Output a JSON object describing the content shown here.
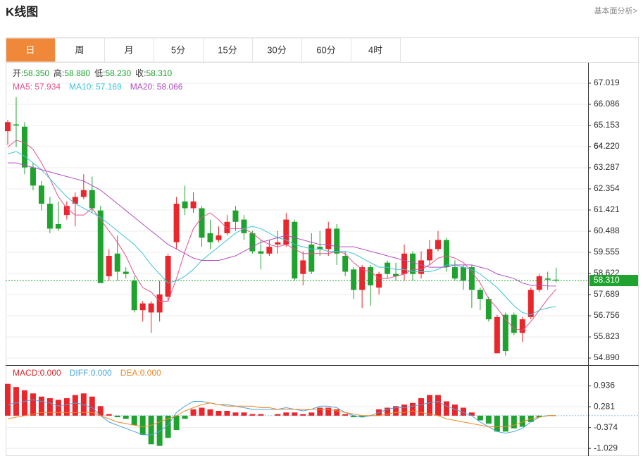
{
  "header": {
    "title": "K线图",
    "link": "基本面分析>"
  },
  "tabs": [
    "日",
    "周",
    "月",
    "5分",
    "15分",
    "30分",
    "60分",
    "4时"
  ],
  "active_tab": 0,
  "active_color": "#f0883a",
  "chart_data": [
    {
      "type": "candlestick",
      "up_color": "#e8262b",
      "down_color": "#1fa22e",
      "info": [
        {
          "label": "开:",
          "value": "58.350"
        },
        {
          "label": "高:",
          "value": "58.880"
        },
        {
          "label": "低:",
          "value": "58.230"
        },
        {
          "label": "收:",
          "value": "58.310"
        }
      ],
      "open": [
        64.9,
        65.2,
        65.1,
        63.3,
        62.5,
        61.7,
        60.8,
        61.2,
        61.7,
        62.0,
        62.3,
        61.4,
        58.5,
        59.5,
        58.7,
        58.3,
        57.0,
        56.9,
        56.9,
        57.6,
        60.0,
        61.8,
        61.5,
        61.5,
        60.4,
        60.1,
        60.4,
        61.4,
        61.0,
        60.4,
        59.6,
        59.5,
        59.9,
        59.9,
        60.9,
        58.6,
        59.9,
        59.8,
        59.7,
        60.6,
        59.4,
        58.8,
        57.9,
        58.9,
        58.0,
        59.1,
        58.6,
        58.6,
        59.5,
        58.6,
        59.2,
        59.7,
        60.1,
        58.9,
        58.9,
        58.9,
        57.9,
        57.5,
        55.1,
        56.8,
        56.8,
        56.0,
        56.7,
        57.9,
        58.4,
        58.35
      ],
      "high": [
        65.4,
        66.4,
        65.3,
        63.5,
        62.7,
        62.0,
        61.8,
        61.8,
        62.2,
        63.0,
        62.9,
        61.6,
        59.7,
        60.3,
        58.9,
        58.5,
        57.4,
        57.4,
        58.3,
        59.5,
        62.0,
        62.5,
        62.2,
        61.6,
        61.0,
        60.7,
        61.2,
        61.6,
        61.2,
        60.5,
        60.1,
        60.1,
        60.5,
        61.3,
        61.0,
        59.6,
        60.4,
        60.5,
        60.9,
        60.8,
        59.6,
        58.9,
        59.0,
        59.0,
        58.7,
        59.2,
        59.1,
        59.9,
        59.6,
        59.6,
        60.1,
        60.5,
        60.2,
        59.2,
        59.0,
        59.0,
        58.0,
        57.6,
        56.8,
        56.9,
        56.9,
        56.7,
        58.0,
        58.6,
        58.7,
        58.88
      ],
      "low": [
        64.3,
        64.2,
        63.0,
        62.3,
        61.4,
        60.4,
        60.5,
        61.0,
        60.7,
        61.9,
        61.3,
        58.2,
        58.3,
        58.3,
        58.4,
        56.9,
        56.5,
        56.0,
        56.5,
        57.4,
        59.7,
        61.2,
        61.3,
        59.8,
        59.7,
        60.0,
        60.3,
        60.5,
        60.1,
        59.5,
        58.8,
        59.4,
        59.5,
        59.8,
        58.3,
        58.1,
        58.6,
        59.4,
        59.4,
        59.0,
        58.5,
        57.5,
        57.1,
        57.2,
        57.7,
        58.4,
        58.3,
        58.3,
        58.3,
        58.4,
        59.0,
        59.6,
        58.7,
        58.3,
        57.9,
        57.1,
        57.0,
        56.5,
        55.1,
        55.0,
        55.9,
        55.6,
        56.6,
        57.8,
        57.9,
        58.23
      ],
      "close": [
        65.3,
        65.15,
        63.3,
        62.5,
        61.7,
        60.6,
        60.6,
        61.6,
        62.0,
        62.3,
        61.5,
        58.2,
        59.4,
        58.7,
        58.6,
        57.0,
        57.3,
        57.3,
        57.7,
        59.4,
        61.7,
        61.5,
        61.8,
        60.2,
        60.0,
        60.3,
        60.9,
        60.9,
        60.4,
        59.6,
        59.5,
        59.8,
        60.0,
        61.0,
        58.4,
        59.2,
        58.7,
        59.7,
        60.6,
        59.5,
        58.7,
        57.9,
        58.9,
        58.1,
        58.6,
        58.6,
        58.5,
        59.5,
        58.6,
        59.2,
        59.7,
        60.1,
        58.9,
        58.4,
        58.3,
        57.9,
        57.5,
        56.6,
        56.7,
        55.2,
        56.0,
        56.6,
        57.9,
        58.5,
        58.35,
        58.31
      ],
      "series": [
        {
          "name": "MA5: 57.934",
          "color": "#e8508e",
          "values": [
            64.2,
            64.5,
            64.4,
            64.1,
            63.5,
            62.8,
            62.0,
            61.5,
            61.2,
            61.2,
            61.5,
            61.0,
            60.5,
            60.0,
            59.4,
            58.6,
            58.0,
            57.8,
            57.4,
            57.4,
            58.4,
            59.6,
            60.6,
            61.1,
            61.3,
            61.0,
            60.6,
            60.6,
            60.6,
            60.4,
            60.1,
            59.9,
            59.8,
            59.9,
            59.7,
            59.5,
            59.5,
            59.5,
            59.5,
            59.6,
            59.5,
            59.1,
            58.8,
            58.7,
            58.4,
            58.4,
            58.5,
            58.6,
            58.8,
            58.8,
            59.0,
            59.3,
            59.4,
            59.3,
            59.1,
            58.7,
            58.2,
            57.5,
            57.1,
            56.6,
            56.2,
            56.1,
            56.5,
            57.0,
            57.5,
            57.934
          ]
        },
        {
          "name": "MA10: 57.169",
          "color": "#3cc4d9",
          "values": [
            63.9,
            64.0,
            63.8,
            63.5,
            63.2,
            62.8,
            62.4,
            62.0,
            61.7,
            61.5,
            61.3,
            61.1,
            60.8,
            60.5,
            60.2,
            59.9,
            59.5,
            59.0,
            58.6,
            58.2,
            58.3,
            58.5,
            58.8,
            59.2,
            59.5,
            59.8,
            60.1,
            60.4,
            60.6,
            60.7,
            60.6,
            60.4,
            60.2,
            60.1,
            59.9,
            59.8,
            59.7,
            59.7,
            59.6,
            59.6,
            59.6,
            59.5,
            59.3,
            59.1,
            58.9,
            58.9,
            58.8,
            58.8,
            58.7,
            58.7,
            58.7,
            58.8,
            59.0,
            59.0,
            58.9,
            58.8,
            58.6,
            58.3,
            58.0,
            57.6,
            57.2,
            56.9,
            56.8,
            57.0,
            57.1,
            57.169
          ]
        },
        {
          "name": "MA20: 58.066",
          "color": "#b24cc4",
          "values": [
            63.5,
            63.5,
            63.4,
            63.3,
            63.2,
            63.1,
            63.0,
            62.9,
            62.8,
            62.7,
            62.5,
            62.3,
            62.0,
            61.7,
            61.4,
            61.1,
            60.8,
            60.5,
            60.2,
            59.9,
            59.7,
            59.5,
            59.3,
            59.2,
            59.2,
            59.2,
            59.3,
            59.4,
            59.6,
            59.8,
            60.0,
            60.1,
            60.2,
            60.3,
            60.2,
            60.1,
            60.0,
            59.9,
            59.9,
            59.8,
            59.8,
            59.8,
            59.7,
            59.6,
            59.5,
            59.4,
            59.3,
            59.2,
            59.1,
            59.0,
            58.9,
            58.9,
            58.9,
            59.0,
            59.0,
            59.0,
            58.9,
            58.8,
            58.6,
            58.5,
            58.4,
            58.2,
            58.1,
            58.1,
            58.07,
            58.066
          ]
        }
      ],
      "last_price": {
        "value": 58.31,
        "label": "58.310"
      },
      "last_color": "#1fa22e",
      "ylim": [
        54.58,
        67.89
      ],
      "yticks": [
        {
          "value": 54.89,
          "label": "54.890"
        },
        55.823,
        56.756,
        57.689,
        58.622,
        59.555,
        60.488,
        61.421,
        62.354,
        63.287,
        64.22,
        {
          "value": 64.22,
          "label": "64.220"
        },
        65.153,
        66.086,
        67.019
      ],
      "grid": true
    },
    {
      "type": "macd",
      "name": "MACD:0.000",
      "pos_color": "#e8262b",
      "neg_color": "#1fa22e",
      "values": [
        1.0,
        0.9,
        0.8,
        0.7,
        0.6,
        0.55,
        0.5,
        0.55,
        0.65,
        0.7,
        0.6,
        0.3,
        0.05,
        -0.05,
        -0.1,
        -0.3,
        -0.6,
        -0.9,
        -0.95,
        -0.7,
        -0.45,
        -0.1,
        0.2,
        0.25,
        0.2,
        0.15,
        0.15,
        0.1,
        0.1,
        0.05,
        0.05,
        0.0,
        0.05,
        0.1,
        0.1,
        0.05,
        0.1,
        0.25,
        0.25,
        0.2,
        0.05,
        -0.05,
        -0.05,
        0.0,
        0.2,
        0.25,
        0.3,
        0.35,
        0.4,
        0.55,
        0.65,
        0.65,
        0.45,
        0.35,
        0.25,
        0.1,
        -0.15,
        -0.25,
        -0.5,
        -0.5,
        -0.4,
        -0.35,
        -0.2,
        -0.05,
        0.0,
        0.0
      ],
      "series": [
        {
          "name": "DIFF:0.000",
          "color": "#4aa3df",
          "values": [
            0.35,
            0.4,
            0.45,
            0.5,
            0.45,
            0.4,
            0.3,
            0.35,
            0.4,
            0.35,
            0.25,
            0.0,
            -0.2,
            -0.3,
            -0.4,
            -0.5,
            -0.6,
            -0.6,
            -0.5,
            -0.3,
            0.1,
            0.3,
            0.45,
            0.45,
            0.4,
            0.35,
            0.35,
            0.3,
            0.25,
            0.2,
            0.2,
            0.2,
            0.2,
            0.25,
            0.2,
            0.15,
            0.2,
            0.3,
            0.3,
            0.25,
            0.1,
            0.0,
            -0.05,
            0.0,
            0.1,
            0.2,
            0.25,
            0.25,
            0.3,
            0.35,
            0.4,
            0.45,
            0.3,
            0.2,
            0.1,
            0.0,
            -0.2,
            -0.35,
            -0.5,
            -0.55,
            -0.5,
            -0.4,
            -0.2,
            -0.05,
            0.0,
            0.0
          ]
        },
        {
          "name": "DEA:0.000",
          "color": "#f08a24",
          "values": [
            -0.1,
            -0.05,
            0.0,
            0.05,
            0.1,
            0.1,
            0.1,
            0.1,
            0.1,
            0.1,
            0.1,
            0.0,
            -0.1,
            -0.2,
            -0.25,
            -0.3,
            -0.35,
            -0.3,
            -0.2,
            -0.1,
            0.0,
            0.15,
            0.25,
            0.35,
            0.4,
            0.35,
            0.3,
            0.3,
            0.3,
            0.3,
            0.25,
            0.25,
            0.2,
            0.2,
            0.2,
            0.2,
            0.2,
            0.2,
            0.2,
            0.15,
            0.1,
            0.05,
            0.0,
            0.0,
            0.0,
            0.05,
            0.1,
            0.1,
            0.15,
            0.1,
            0.05,
            0.0,
            -0.1,
            -0.15,
            -0.2,
            -0.25,
            -0.3,
            -0.35,
            -0.35,
            -0.35,
            -0.3,
            -0.2,
            -0.1,
            -0.05,
            0.0,
            0.0
          ]
        }
      ],
      "ylim": [
        -1.225,
        1.547
      ],
      "yticks": [
        -1.029,
        -0.374,
        0.281,
        0.936
      ],
      "grid": true
    }
  ]
}
